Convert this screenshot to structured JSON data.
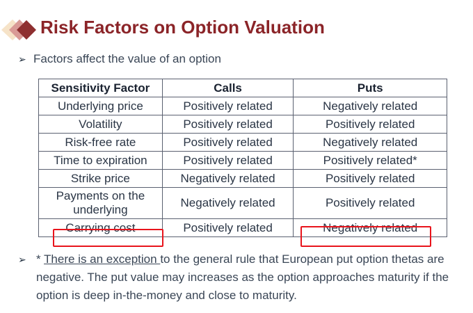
{
  "title": "Risk Factors on Option Valuation",
  "intro": "Factors affect the value of an option",
  "table": {
    "headers": [
      "Sensitivity Factor",
      "Calls",
      "Puts"
    ],
    "rows": [
      [
        "Underlying price",
        "Positively related",
        "Negatively related"
      ],
      [
        "Volatility",
        "Positively related",
        "Positively related"
      ],
      [
        "Risk-free rate",
        "Positively related",
        "Negatively related"
      ],
      [
        "Time to expiration",
        "Positively related",
        "Positively related*"
      ],
      [
        "Strike price",
        "Negatively related",
        "Positively related"
      ],
      [
        "Payments on the underlying",
        "Negatively related",
        "Positively related"
      ],
      [
        "Carrying cost",
        "Positively related",
        "Negatively related"
      ]
    ]
  },
  "note": {
    "prefix": "* ",
    "link": "There is an exception ",
    "rest": "to the general rule that European put option thetas are negative. The put value may increases as the option approaches maturity if the option is deep in-the-money and close to maturity."
  },
  "colors": {
    "title": "#8b2428",
    "highlight": "#e8141c"
  }
}
